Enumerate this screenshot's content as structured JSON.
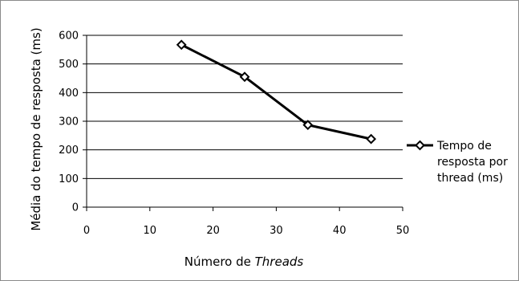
{
  "chart_data": {
    "type": "line",
    "title": "",
    "xlabel": "Número de",
    "xlabel_italic": "Threads",
    "ylabel": "Média do tempo de resposta (ms)",
    "xlim": [
      0,
      50
    ],
    "ylim": [
      0,
      600
    ],
    "x_ticks": [
      0,
      10,
      20,
      30,
      40,
      50
    ],
    "y_ticks": [
      0,
      100,
      200,
      300,
      400,
      500,
      600
    ],
    "grid": "horizontal",
    "legend_position": "right",
    "legend_lines": [
      "Tempo de",
      "resposta por",
      "thread (ms)"
    ],
    "series": [
      {
        "name": "Tempo de resposta por thread (ms)",
        "color": "#000000",
        "marker": "diamond-open",
        "x": [
          15,
          25,
          35,
          45
        ],
        "values": [
          567,
          455,
          287,
          238
        ]
      }
    ]
  }
}
